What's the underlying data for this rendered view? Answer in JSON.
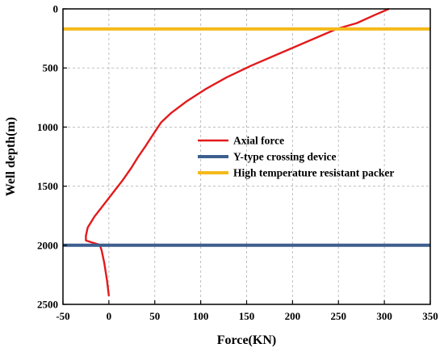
{
  "chart_data": {
    "type": "line",
    "title": "",
    "xlabel": "Force(KN)",
    "ylabel": "Well depth(m)",
    "xlim": [
      -50,
      350
    ],
    "ylim": [
      0,
      2500
    ],
    "y_inverted": true,
    "x_axis_position": "top",
    "grid": true,
    "xticks": [
      -50,
      0,
      50,
      100,
      150,
      200,
      250,
      300,
      350
    ],
    "yticks": [
      0,
      500,
      1000,
      1500,
      2000,
      2500
    ],
    "legend": {
      "placement": "right",
      "entries": [
        "Axial force",
        "Y-type crossing device",
        "High temperature resistant packer"
      ]
    },
    "series": [
      {
        "name": "Axial force",
        "color": "#e31a1c",
        "points": [
          [
            305,
            0
          ],
          [
            290,
            50
          ],
          [
            270,
            120
          ],
          [
            248,
            170
          ],
          [
            215,
            280
          ],
          [
            185,
            380
          ],
          [
            155,
            480
          ],
          [
            128,
            580
          ],
          [
            105,
            680
          ],
          [
            85,
            780
          ],
          [
            68,
            880
          ],
          [
            57,
            960
          ],
          [
            50,
            1040
          ],
          [
            45,
            1100
          ],
          [
            40,
            1160
          ],
          [
            32,
            1250
          ],
          [
            24,
            1350
          ],
          [
            15,
            1450
          ],
          [
            5,
            1550
          ],
          [
            -5,
            1650
          ],
          [
            -16,
            1760
          ],
          [
            -23,
            1850
          ],
          [
            -25,
            1920
          ],
          [
            -25,
            1960
          ],
          [
            -19,
            1975
          ],
          [
            -10,
            1995
          ],
          [
            -8,
            2040
          ],
          [
            -5,
            2150
          ],
          [
            -2,
            2300
          ],
          [
            0,
            2430
          ]
        ]
      },
      {
        "name": "Y-type crossing device",
        "color": "#3d5f8f",
        "depth": 2000
      },
      {
        "name": "High temperature resistant packer",
        "color": "#f5b91a",
        "depth": 170
      }
    ]
  }
}
